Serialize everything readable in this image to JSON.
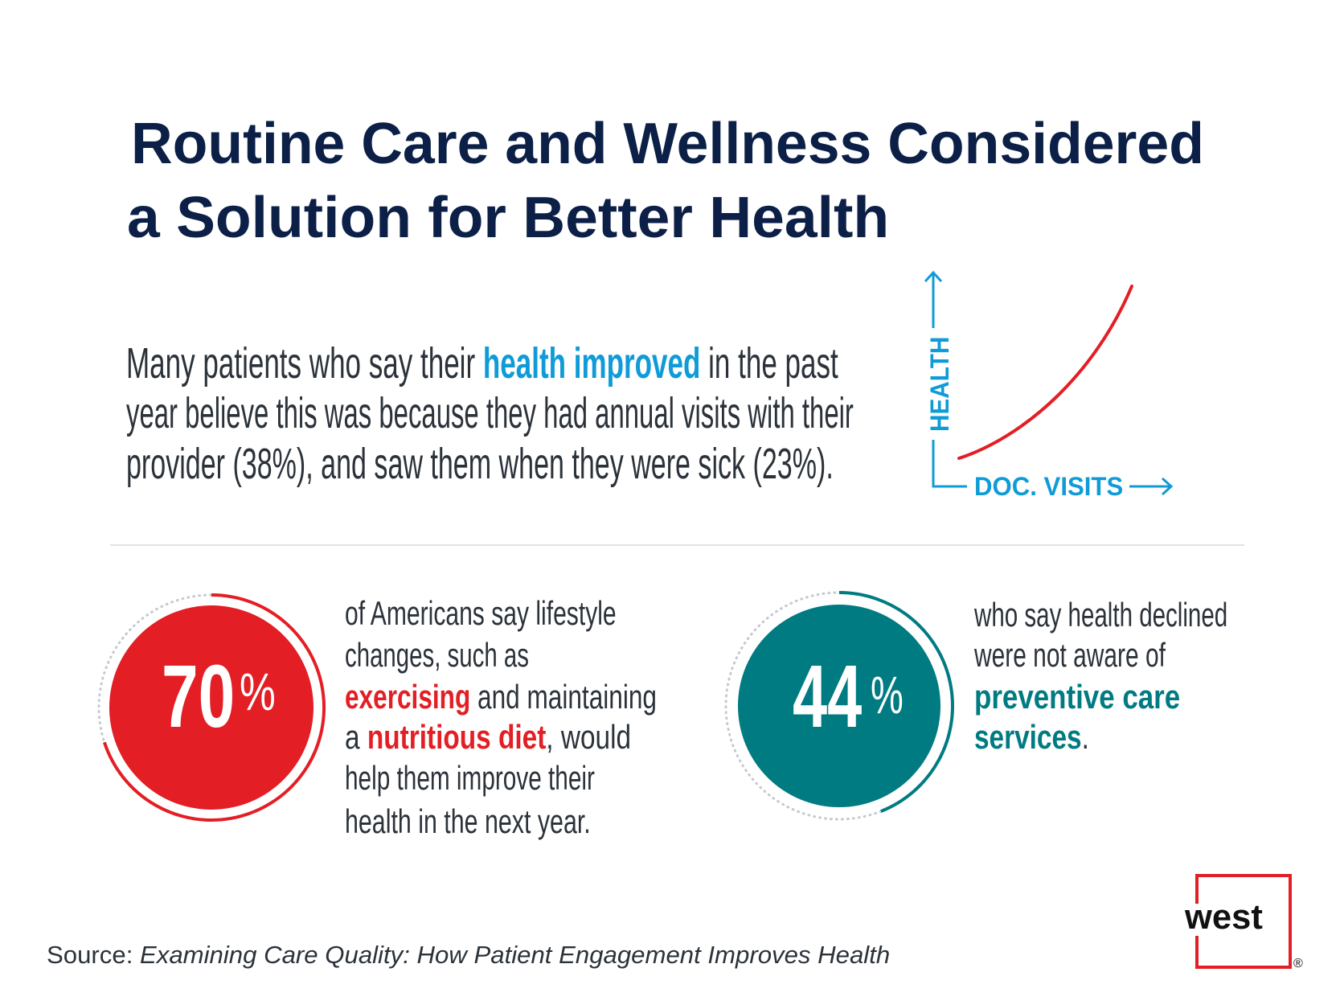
{
  "title": {
    "line1": "Routine Care and Wellness Considered",
    "line2": "a Solution for Better Health"
  },
  "intro": {
    "line1_a": "Many patients who say their ",
    "line1_highlight": "health improved",
    "line1_b": " in the past",
    "line2": "year believe this was because they had annual visits with their",
    "line3": "provider (38%), and saw them when they were sick (23%)."
  },
  "mini_chart": {
    "y_axis_label": "HEALTH",
    "x_axis_label": "DOC. VISITS",
    "curve_color": "#e31e24",
    "axis_color": "#0f9bd7"
  },
  "stats": [
    {
      "value": "70",
      "unit": "%",
      "fraction": 0.7,
      "color": "#e31e24",
      "lines": {
        "l1": "of Americans say lifestyle",
        "l2": "changes, such as",
        "l3_highlight": "exercising",
        "l3_rest": " and maintaining",
        "l4_a": "a ",
        "l4_highlight": "nutritious diet",
        "l4_b": ", would",
        "l5": "help them improve their",
        "l6": "health in the next year."
      }
    },
    {
      "value": "44",
      "unit": "%",
      "fraction": 0.44,
      "color": "#007b82",
      "lines": {
        "l1": "who say health declined",
        "l2": "were not aware of",
        "l3_highlight": "preventive care",
        "l4_highlight": "services",
        "l4_b": "."
      }
    }
  ],
  "source": {
    "label": "Source: ",
    "title": "Examining Care Quality: How Patient Engagement Improves Health"
  },
  "logo": {
    "word": "west",
    "registered": "®",
    "color": "#e31e24"
  }
}
